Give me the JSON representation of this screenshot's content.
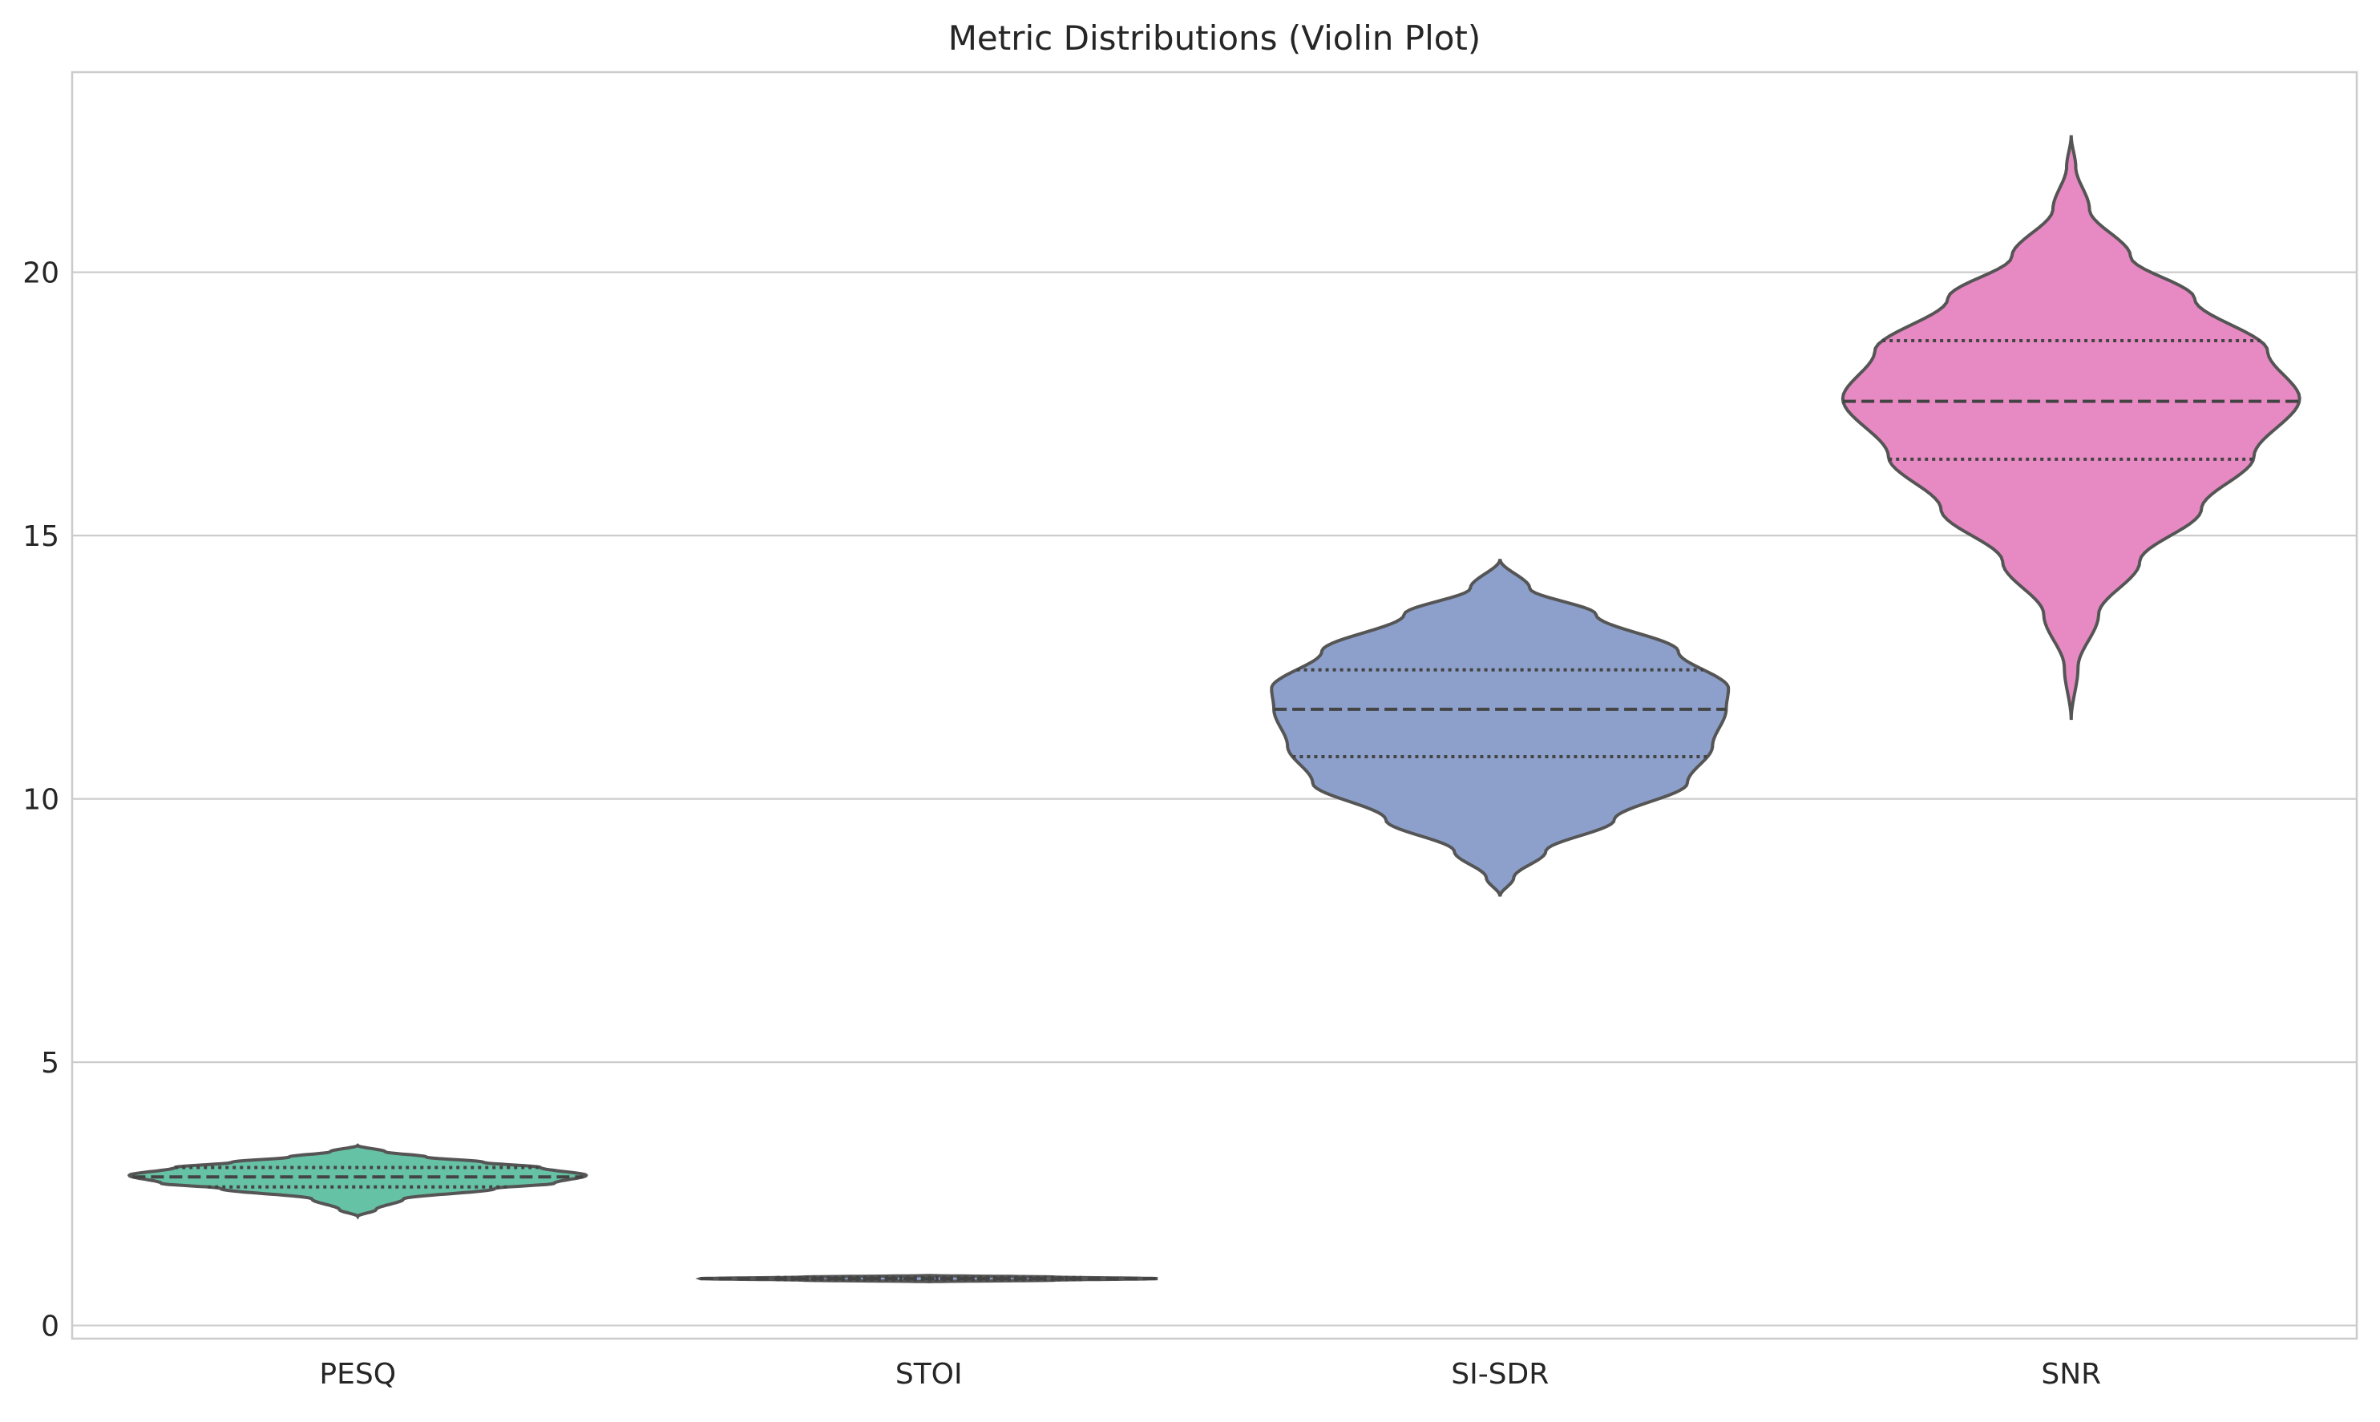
{
  "chart_data": {
    "type": "violin",
    "title": "Metric Distributions (Violin Plot)",
    "xlabel": "",
    "ylabel": "",
    "categories": [
      "PESQ",
      "STOI",
      "SI-SDR",
      "SNR"
    ],
    "ylim": [
      -0.25,
      23.8
    ],
    "yticks": [
      0,
      5,
      10,
      15,
      20
    ],
    "grid": true,
    "legend": "none",
    "colors": [
      "#66c2a5",
      "#8da0cb",
      "#8da0cb",
      "#e78ac3"
    ],
    "series": [
      {
        "category": "PESQ",
        "color": "#66c2a5",
        "y": [
          2.07,
          2.2,
          2.4,
          2.6,
          2.7,
          2.85,
          3.0,
          3.1,
          3.2,
          3.3,
          3.42
        ],
        "density": [
          0.0,
          0.08,
          0.2,
          0.6,
          0.86,
          1.0,
          0.8,
          0.55,
          0.3,
          0.12,
          0.0
        ],
        "q1": 2.63,
        "median": 2.82,
        "q3": 3.0
      },
      {
        "category": "STOI",
        "color": "#8da0cb",
        "y": [
          0.83,
          0.86,
          0.89,
          0.92,
          0.95
        ],
        "density": [
          0.0,
          0.55,
          1.0,
          0.55,
          0.0
        ],
        "q1": 0.87,
        "median": 0.89,
        "q3": 0.91
      },
      {
        "category": "SI-SDR",
        "color": "#8da0cb",
        "y": [
          8.15,
          8.5,
          9.0,
          9.6,
          10.3,
          11.0,
          11.7,
          12.1,
          12.8,
          13.5,
          14.0,
          14.55
        ],
        "density": [
          0.0,
          0.06,
          0.2,
          0.5,
          0.82,
          0.93,
          0.99,
          1.0,
          0.78,
          0.42,
          0.13,
          0.0
        ],
        "q1": 10.8,
        "median": 11.7,
        "q3": 12.45
      },
      {
        "category": "SNR",
        "color": "#e78ac3",
        "y": [
          11.5,
          12.5,
          13.5,
          14.5,
          15.5,
          16.5,
          17.6,
          18.5,
          19.5,
          20.3,
          21.2,
          22.0,
          22.6
        ],
        "density": [
          0.0,
          0.03,
          0.12,
          0.3,
          0.57,
          0.8,
          1.0,
          0.86,
          0.54,
          0.26,
          0.08,
          0.02,
          0.0
        ],
        "q1": 16.45,
        "median": 17.55,
        "q3": 18.7
      }
    ]
  }
}
